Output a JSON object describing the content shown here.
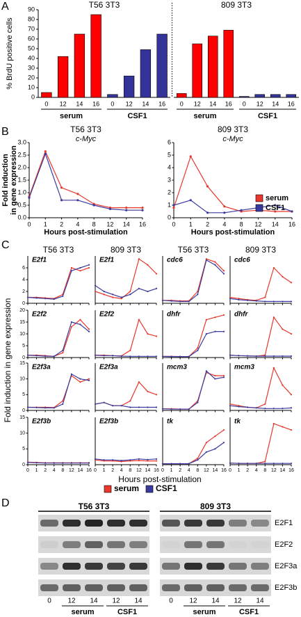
{
  "panel_labels": [
    "A",
    "B",
    "C",
    "D"
  ],
  "chart_data": [
    {
      "type": "bar",
      "ylabel": "% BrdU positive cells",
      "ylim": [
        0,
        90
      ],
      "yticks": [
        0,
        10,
        20,
        30,
        40,
        50,
        60,
        70,
        80,
        90
      ],
      "panels": [
        {
          "title": "T56 3T3",
          "categories": [
            "0",
            "12",
            "14",
            "16"
          ],
          "series": [
            {
              "name": "serum",
              "color": "#ff0000",
              "values": [
                5,
                42,
                65,
                85
              ]
            },
            {
              "name": "CSF1",
              "color": "#333399",
              "values": [
                3,
                22,
                49,
                65
              ]
            }
          ]
        },
        {
          "title": "809 3T3",
          "categories": [
            "0",
            "12",
            "14",
            "16"
          ],
          "series": [
            {
              "name": "serum",
              "color": "#ff0000",
              "values": [
                4,
                55,
                63,
                69
              ]
            },
            {
              "name": "CSF1",
              "color": "#333399",
              "values": [
                1,
                3,
                3,
                3
              ]
            }
          ]
        }
      ]
    },
    {
      "type": "line",
      "title": "T56 3T3",
      "subtitle": "c-Myc",
      "ylabel": [
        "Fold induction",
        "in gene expression"
      ],
      "xlabel": "Hours post-stimulation",
      "categories": [
        "0",
        "1",
        "2",
        "4",
        "8",
        "12",
        "14",
        "16"
      ],
      "ylim": [
        0,
        3
      ],
      "yticks": [
        {
          "value": 0,
          "label": "0.0"
        },
        {
          "value": 0.5,
          "label": "0.5"
        },
        {
          "value": 1,
          "label": "1.0"
        },
        {
          "value": 1.5,
          "label": "1.5"
        },
        {
          "value": 2,
          "label": "2.0"
        },
        {
          "value": 2.5,
          "label": "2.5"
        },
        {
          "value": 3,
          "label": "3.0"
        }
      ],
      "series": [
        {
          "name": "serum",
          "color": "#e8372c",
          "values": [
            0.85,
            2.65,
            1.2,
            0.95,
            0.55,
            0.4,
            0.4,
            0.4
          ]
        },
        {
          "name": "CSF1",
          "color": "#3a3a9e",
          "values": [
            0.8,
            2.55,
            0.7,
            0.7,
            0.5,
            0.35,
            0.3,
            0.3
          ]
        }
      ]
    },
    {
      "type": "line",
      "title": "809 3T3",
      "subtitle": "c-Myc",
      "xlabel": "Hours post-stimulation",
      "categories": [
        "0",
        "1",
        "2",
        "4",
        "8",
        "12",
        "14",
        "16"
      ],
      "ylim": [
        0,
        6
      ],
      "yticks": [
        0,
        1,
        2,
        3,
        4,
        5,
        6
      ],
      "legend": "upper right",
      "series": [
        {
          "name": "serum",
          "color": "#e8372c",
          "values": [
            0.8,
            4.9,
            2.5,
            0.9,
            0.5,
            0.6,
            0.5,
            0.5
          ]
        },
        {
          "name": "CSF1",
          "color": "#3a3a9e",
          "values": [
            1.0,
            1.4,
            0.4,
            0.4,
            0.6,
            0.8,
            1.0,
            0.5
          ]
        }
      ]
    },
    {
      "type": "small-multiples",
      "column_titles": [
        "T56 3T3",
        "809 3T3",
        "T56 3T3",
        "809 3T3"
      ],
      "ylabel": "Fold induction in gene expression",
      "xlabel": "Hours post-stimulation",
      "categories": [
        "0",
        "1",
        "2",
        "4",
        "8",
        "12",
        "14",
        "16"
      ],
      "legend": "bottom",
      "charts": [
        {
          "label": "E2f1",
          "ylim": [
            0,
            8
          ],
          "yticks": [
            0,
            2,
            4,
            6
          ],
          "series": [
            {
              "name": "serum",
              "color": "#e8372c",
              "values": [
                1,
                1,
                0.9,
                0.8,
                1.5,
                6,
                5.5,
                6
              ]
            },
            {
              "name": "CSF1",
              "color": "#3a3a9e",
              "values": [
                1,
                0.9,
                0.8,
                0.7,
                1.2,
                5.5,
                6,
                6.5
              ]
            }
          ]
        },
        {
          "label": "E2f1",
          "ylim": [
            0,
            8
          ],
          "series": [
            {
              "name": "serum",
              "color": "#e8372c",
              "values": [
                2,
                1.5,
                1,
                0.8,
                2,
                7.5,
                6.5,
                5
              ]
            },
            {
              "name": "CSF1",
              "color": "#3a3a9e",
              "values": [
                3,
                2,
                1.5,
                1,
                1.5,
                2.5,
                2,
                2.5
              ]
            }
          ]
        },
        {
          "label": "cdc6",
          "ylim": [
            0,
            8
          ],
          "series": [
            {
              "name": "serum",
              "color": "#e8372c",
              "values": [
                0.5,
                0.5,
                0.4,
                0.4,
                2,
                7.5,
                7,
                5.5
              ]
            },
            {
              "name": "CSF1",
              "color": "#3a3a9e",
              "values": [
                0.5,
                0.4,
                0.3,
                0.3,
                1.5,
                7.3,
                6.5,
                5
              ]
            }
          ]
        },
        {
          "label": "cdc6",
          "ylim": [
            0,
            8
          ],
          "series": [
            {
              "name": "serum",
              "color": "#e8372c",
              "values": [
                1,
                0.8,
                0.6,
                0.5,
                1,
                6,
                4.5,
                3.5
              ]
            },
            {
              "name": "CSF1",
              "color": "#3a3a9e",
              "values": [
                0.8,
                0.6,
                0.5,
                0.4,
                0.3,
                0.3,
                0.3,
                0.3
              ]
            }
          ]
        },
        {
          "label": "E2f2",
          "ylim": [
            0,
            20
          ],
          "yticks": [
            0,
            5,
            10,
            15,
            20
          ],
          "series": [
            {
              "name": "serum",
              "color": "#e8372c",
              "values": [
                1,
                1,
                0.8,
                0.5,
                2,
                13,
                16,
                12
              ]
            },
            {
              "name": "CSF1",
              "color": "#3a3a9e",
              "values": [
                1,
                0.8,
                0.6,
                0.5,
                3,
                15,
                14,
                11
              ]
            }
          ]
        },
        {
          "label": "E2f2",
          "ylim": [
            0,
            20
          ],
          "series": [
            {
              "name": "serum",
              "color": "#e8372c",
              "values": [
                1,
                1,
                0.8,
                0.7,
                3,
                16,
                10,
                9
              ]
            },
            {
              "name": "CSF1",
              "color": "#3a3a9e",
              "values": [
                1,
                0.8,
                0.8,
                0.6,
                0.5,
                0.5,
                0.5,
                0.5
              ]
            }
          ]
        },
        {
          "label": "dhfr",
          "ylim": [
            0,
            20
          ],
          "series": [
            {
              "name": "serum",
              "color": "#e8372c",
              "values": [
                0.5,
                0.5,
                0.4,
                0.4,
                4,
                16,
                17,
                18
              ]
            },
            {
              "name": "CSF1",
              "color": "#3a3a9e",
              "values": [
                0.5,
                0.4,
                0.4,
                0.4,
                3,
                10,
                11,
                11
              ]
            }
          ]
        },
        {
          "label": "dhfr",
          "ylim": [
            0,
            20
          ],
          "series": [
            {
              "name": "serum",
              "color": "#e8372c",
              "values": [
                1,
                0.8,
                0.7,
                0.6,
                1,
                17,
                12,
                10
              ]
            },
            {
              "name": "CSF1",
              "color": "#3a3a9e",
              "values": [
                1,
                0.8,
                0.7,
                0.6,
                0.6,
                0.6,
                0.6,
                0.6
              ]
            }
          ]
        },
        {
          "label": "E2f3a",
          "ylim": [
            0,
            15
          ],
          "yticks": [
            0,
            5,
            10,
            15
          ],
          "series": [
            {
              "name": "serum",
              "color": "#e8372c",
              "values": [
                1,
                1,
                1,
                0.9,
                3,
                11,
                9,
                10
              ]
            },
            {
              "name": "CSF1",
              "color": "#3a3a9e",
              "values": [
                1,
                0.9,
                0.8,
                0.8,
                2,
                11.5,
                10,
                9.5
              ]
            }
          ]
        },
        {
          "label": "E2f3a",
          "ylim": [
            0,
            15
          ],
          "series": [
            {
              "name": "serum",
              "color": "#e8372c",
              "values": [
                2,
                2.5,
                1.5,
                1.5,
                3,
                9,
                6,
                5
              ]
            },
            {
              "name": "CSF1",
              "color": "#3a3a9e",
              "values": [
                2,
                2.5,
                1.5,
                1.5,
                1,
                1,
                1,
                1
              ]
            }
          ]
        },
        {
          "label": "mcm3",
          "ylim": [
            0,
            15
          ],
          "series": [
            {
              "name": "serum",
              "color": "#e8372c",
              "values": [
                0.5,
                0.5,
                0.4,
                0.4,
                3,
                12,
                11,
                11
              ]
            },
            {
              "name": "CSF1",
              "color": "#3a3a9e",
              "values": [
                0.5,
                0.4,
                0.4,
                0.4,
                2.5,
                12.5,
                10,
                10.5
              ]
            }
          ]
        },
        {
          "label": "mcm3",
          "ylim": [
            0,
            15
          ],
          "series": [
            {
              "name": "serum",
              "color": "#e8372c",
              "values": [
                2,
                1.5,
                1,
                0.8,
                2,
                13.5,
                8,
                5
              ]
            },
            {
              "name": "CSF1",
              "color": "#3a3a9e",
              "values": [
                1.5,
                1.2,
                1,
                0.8,
                0.6,
                0.6,
                0.6,
                0.8
              ]
            }
          ]
        },
        {
          "label": "E2f3b",
          "ylim": [
            0,
            15
          ],
          "yticks": [
            0,
            5,
            10,
            15
          ],
          "series": [
            {
              "name": "serum",
              "color": "#e8372c",
              "values": [
                0.8,
                0.7,
                0.6,
                0.6,
                0.6,
                0.6,
                0.6,
                0.6
              ]
            },
            {
              "name": "CSF1",
              "color": "#3a3a9e",
              "values": [
                0.7,
                0.6,
                0.5,
                0.5,
                0.5,
                0.5,
                0.5,
                0.5
              ]
            }
          ]
        },
        {
          "label": "E2f3b",
          "ylim": [
            0,
            15
          ],
          "series": [
            {
              "name": "serum",
              "color": "#e8372c",
              "values": [
                1.5,
                1.2,
                1.2,
                1.0,
                1.2,
                1.3,
                1.2,
                1.2
              ]
            },
            {
              "name": "CSF1",
              "color": "#3a3a9e",
              "values": [
                1.8,
                1.5,
                1.5,
                1.3,
                1.5,
                1.8,
                1.6,
                1.8
              ]
            }
          ]
        },
        {
          "label": "tk",
          "ylim": [
            0,
            15
          ],
          "series": [
            {
              "name": "serum",
              "color": "#e8372c",
              "values": [
                0.3,
                0.3,
                0.3,
                0.3,
                2,
                7,
                9,
                11
              ]
            },
            {
              "name": "CSF1",
              "color": "#3a3a9e",
              "values": [
                0.3,
                0.3,
                0.3,
                0.3,
                1.5,
                4,
                5,
                7
              ]
            }
          ]
        },
        {
          "label": "tk",
          "ylim": [
            0,
            15
          ],
          "series": [
            {
              "name": "serum",
              "color": "#e8372c",
              "values": [
                0.5,
                0.4,
                0.4,
                0.4,
                1,
                13,
                12,
                11
              ]
            },
            {
              "name": "CSF1",
              "color": "#3a3a9e",
              "values": [
                0.5,
                0.4,
                0.4,
                0.4,
                0.4,
                0.4,
                0.4,
                0.4
              ]
            }
          ]
        }
      ]
    }
  ],
  "blot": {
    "cell_lines": [
      "T56 3T3",
      "809 3T3"
    ],
    "proteins": [
      "E2F1",
      "E2F2",
      "E2F3a",
      "E2F3b"
    ],
    "lanes": [
      "0",
      "12",
      "14",
      "12",
      "14"
    ],
    "groups": [
      "serum",
      "CSF1"
    ]
  }
}
